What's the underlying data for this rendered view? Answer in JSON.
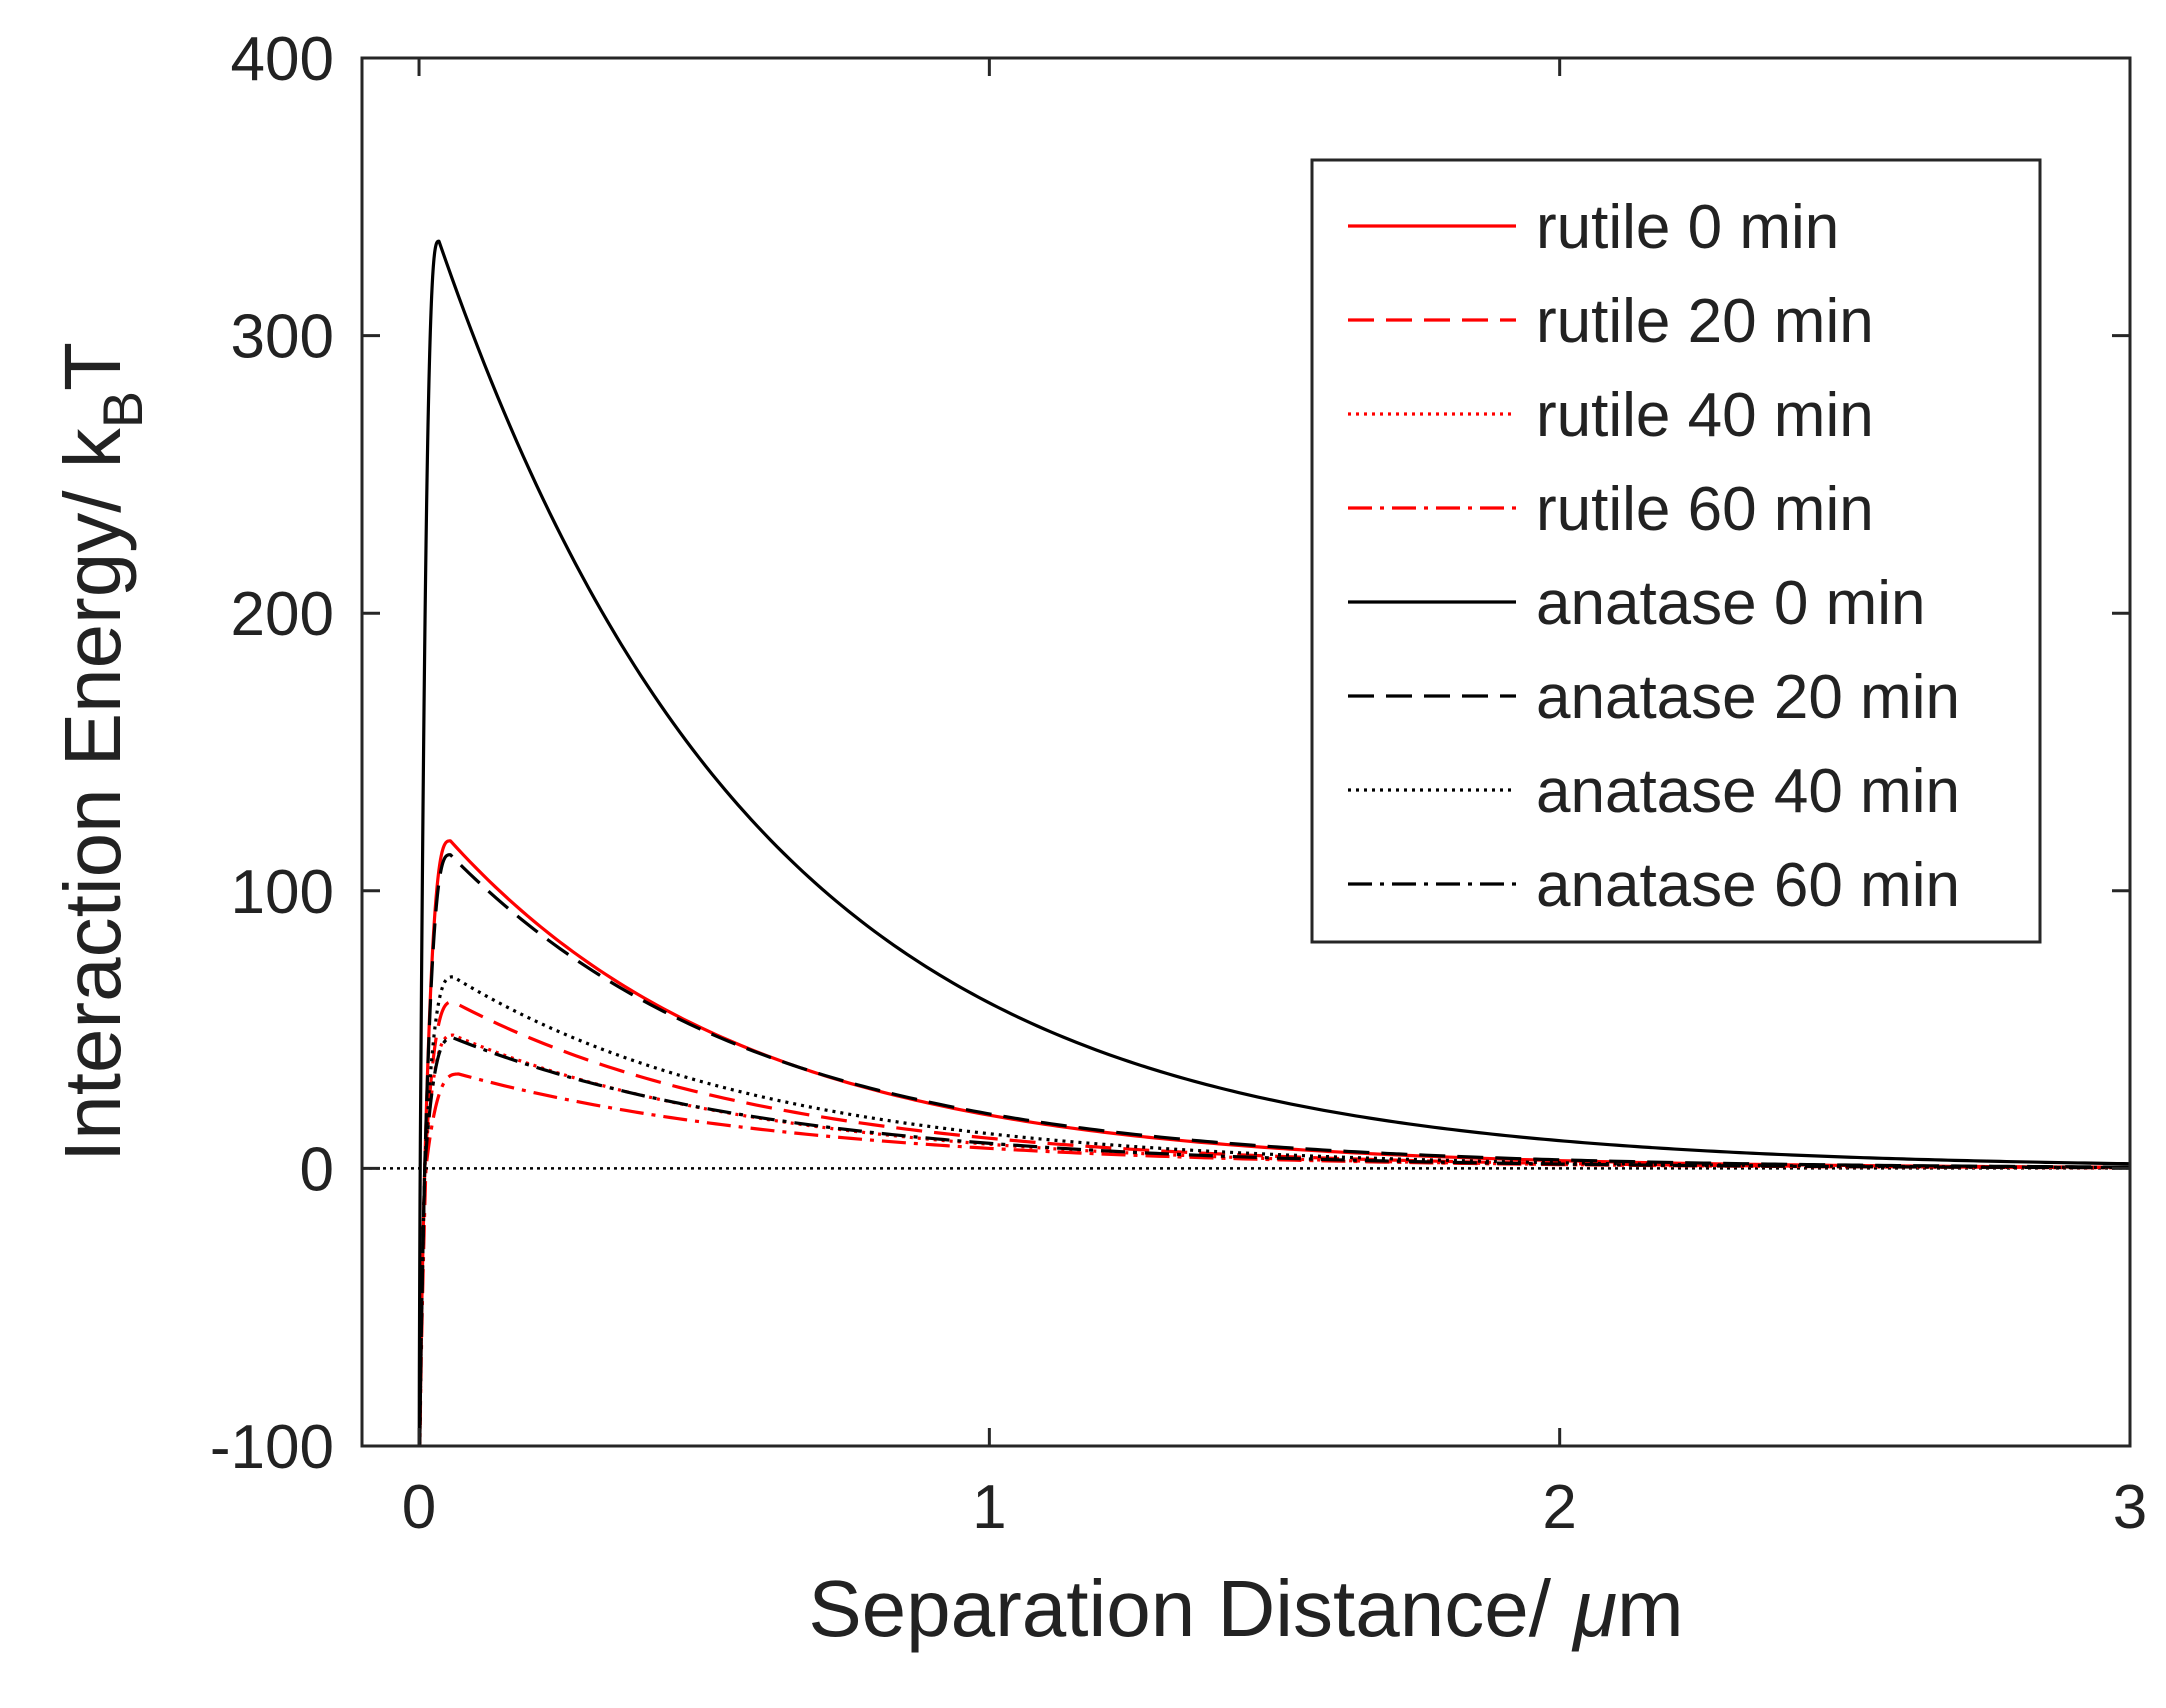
{
  "chart_data": {
    "type": "line",
    "title": "",
    "xlabel": "Separation Distance/ μm",
    "xlabel_parts": {
      "main": "Separation Distance/ ",
      "greek": "μ",
      "unit": "m"
    },
    "ylabel_parts": {
      "main": "Interaction Energy/ k",
      "sub": "B",
      "tail": "T"
    },
    "xlim": [
      -0.1,
      3
    ],
    "ylim": [
      -100,
      400
    ],
    "xticks": [
      0,
      1,
      2,
      3
    ],
    "xtick_labels": [
      "0",
      "1",
      "2",
      "3"
    ],
    "yticks": [
      -100,
      0,
      100,
      200,
      300,
      400
    ],
    "ytick_labels": [
      "-100",
      "0",
      "100",
      "200",
      "300",
      "400"
    ],
    "grid": false,
    "legend_location": "top-right",
    "zero_line": true,
    "series": [
      {
        "name": "rutile 0 min",
        "color": "#ff0000",
        "dash": "solid",
        "peak_x": 0.055,
        "peak_y": 118,
        "cross_x": 0.01,
        "decay": 0.52
      },
      {
        "name": "rutile 20 min",
        "color": "#ff0000",
        "dash": "dashed",
        "peak_x": 0.06,
        "peak_y": 60,
        "cross_x": 0.01,
        "decay": 0.55
      },
      {
        "name": "rutile 40 min",
        "color": "#ff0000",
        "dash": "dotted",
        "peak_x": 0.06,
        "peak_y": 48,
        "cross_x": 0.01,
        "decay": 0.55
      },
      {
        "name": "rutile 60 min",
        "color": "#ff0000",
        "dash": "dashdot",
        "peak_x": 0.07,
        "peak_y": 34,
        "cross_x": 0.012,
        "decay": 0.6
      },
      {
        "name": "anatase 0 min",
        "color": "#000000",
        "dash": "solid",
        "peak_x": 0.035,
        "peak_y": 334,
        "cross_x": 0.002,
        "decay": 0.56
      },
      {
        "name": "anatase 20 min",
        "color": "#000000",
        "dash": "dashed",
        "peak_x": 0.055,
        "peak_y": 113,
        "cross_x": 0.01,
        "decay": 0.54
      },
      {
        "name": "anatase 40 min",
        "color": "#000000",
        "dash": "dotted",
        "peak_x": 0.06,
        "peak_y": 69,
        "cross_x": 0.01,
        "decay": 0.55
      },
      {
        "name": "anatase 60 min",
        "color": "#000000",
        "dash": "dashdot",
        "peak_x": 0.06,
        "peak_y": 47,
        "cross_x": 0.01,
        "decay": 0.57
      }
    ]
  }
}
